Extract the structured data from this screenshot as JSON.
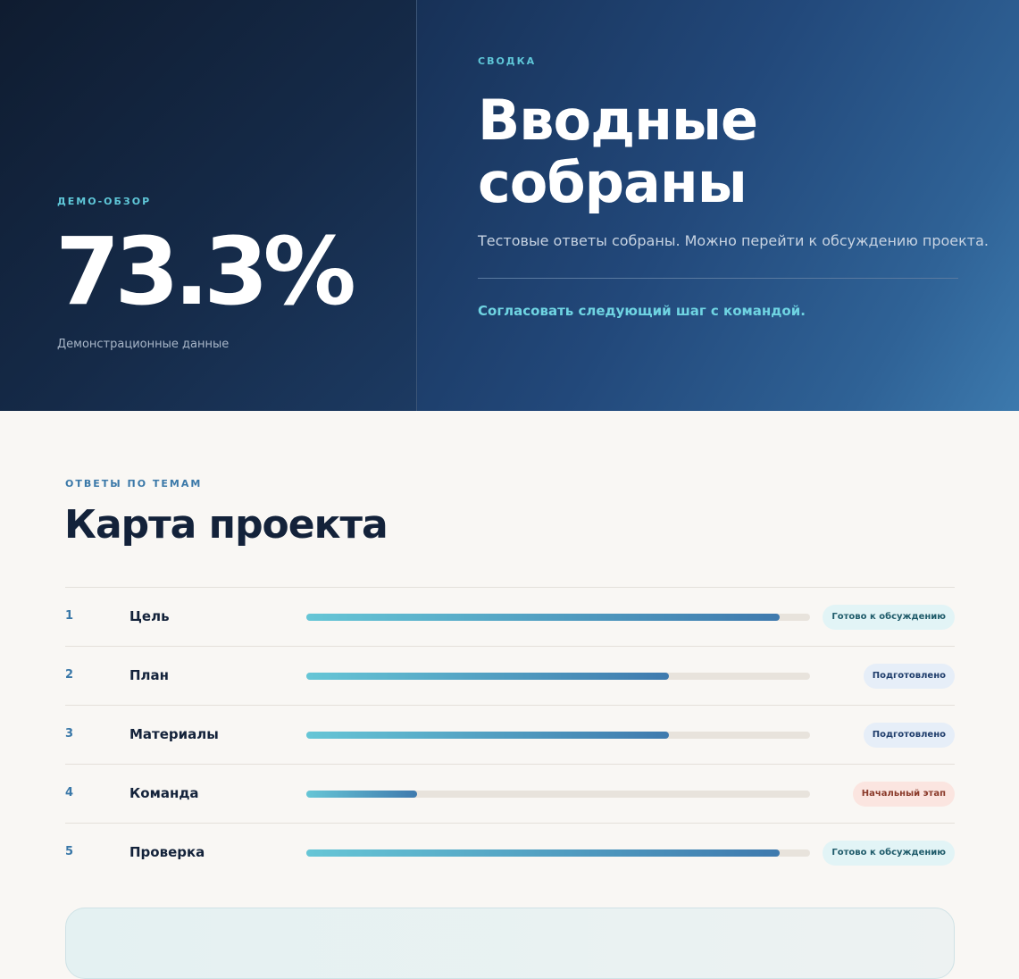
{
  "hero": {
    "left": {
      "eyebrow": "ДЕМО-ОБЗОР",
      "metric": "73.3%",
      "caption": "Демонстрационные данные"
    },
    "right": {
      "eyebrow": "СВОДКА",
      "title": "Вводные собраны",
      "subtitle": "Тестовые ответы собраны. Можно перейти к обсуждению проекта.",
      "cta": "Согласовать следующий шаг с командой."
    }
  },
  "section": {
    "eyebrow": "ОТВЕТЫ ПО ТЕМАМ",
    "title": "Карта проекта"
  },
  "rows": [
    {
      "num": "1",
      "name": "Цель",
      "progress": 0.94,
      "status": "Готово к обсуждению",
      "status_kind": "ready"
    },
    {
      "num": "2",
      "name": "План",
      "progress": 0.72,
      "status": "Подготовлено",
      "status_kind": "prepared"
    },
    {
      "num": "3",
      "name": "Материалы",
      "progress": 0.72,
      "status": "Подготовлено",
      "status_kind": "prepared"
    },
    {
      "num": "4",
      "name": "Команда",
      "progress": 0.22,
      "status": "Начальный этап",
      "status_kind": "initial"
    },
    {
      "num": "5",
      "name": "Проверка",
      "progress": 0.94,
      "status": "Готово к обсуждению",
      "status_kind": "ready"
    }
  ],
  "colors": {
    "accent_cyan": "#5fc7d8",
    "accent_blue": "#3a78a8",
    "hero_dark": "#0f1c30",
    "hero_blue": "#3c79ad",
    "text_dark": "#13223a"
  }
}
